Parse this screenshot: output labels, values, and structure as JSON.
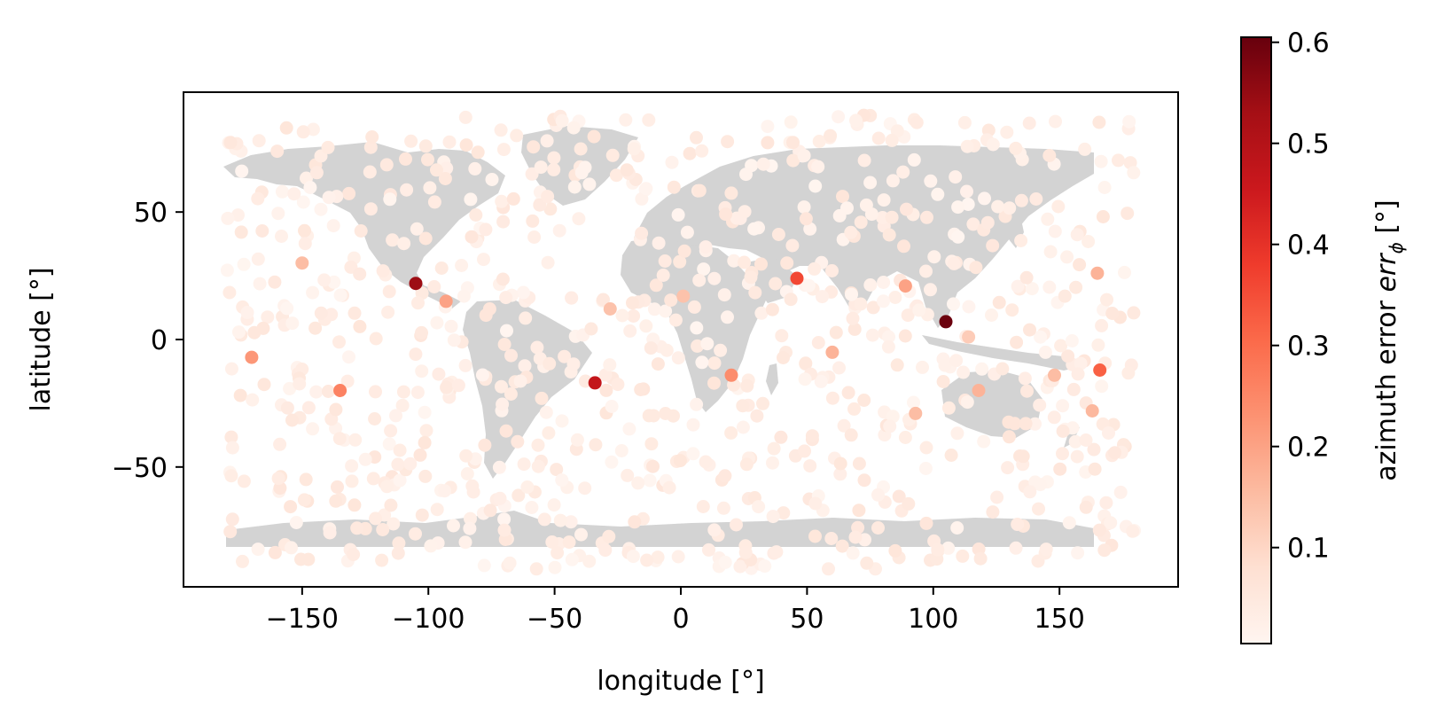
{
  "chart_data": {
    "type": "scatter",
    "title": "",
    "xlabel": "longitude [°]",
    "ylabel": "latitude [°]",
    "xlim": [
      -197,
      197
    ],
    "ylim": [
      -97,
      97
    ],
    "xticks": [
      -150,
      -100,
      -50,
      0,
      50,
      100,
      150
    ],
    "xtick_labels": [
      "−150",
      "−100",
      "−50",
      "0",
      "50",
      "100",
      "150"
    ],
    "yticks": [
      -50,
      0,
      50
    ],
    "ytick_labels": [
      "−50",
      "0",
      "50"
    ],
    "grid": false,
    "background": "world map (land masses in light gray)",
    "colorbar": {
      "label_prefix": "azimuth error ",
      "label_math": "err",
      "label_sub": "ϕ",
      "label_suffix": " [°]",
      "colormap": "Reds",
      "range": [
        0.005,
        0.605
      ],
      "ticks": [
        0.1,
        0.2,
        0.3,
        0.4,
        0.5,
        0.6
      ],
      "tick_labels": [
        "0.1",
        "0.2",
        "0.3",
        "0.4",
        "0.5",
        "0.6"
      ]
    },
    "highlighted_points": [
      {
        "x": 105,
        "y": 7,
        "err": 0.6
      },
      {
        "x": -105,
        "y": 22,
        "err": 0.54
      },
      {
        "x": -34,
        "y": -17,
        "err": 0.47
      },
      {
        "x": 46,
        "y": 24,
        "err": 0.36
      },
      {
        "x": 166,
        "y": -12,
        "err": 0.32
      },
      {
        "x": -135,
        "y": -20,
        "err": 0.26
      },
      {
        "x": 20,
        "y": -14,
        "err": 0.24
      },
      {
        "x": -170,
        "y": -7,
        "err": 0.22
      },
      {
        "x": 89,
        "y": 21,
        "err": 0.2
      },
      {
        "x": -93,
        "y": 15,
        "err": 0.2
      },
      {
        "x": 60,
        "y": -5,
        "err": 0.17
      },
      {
        "x": 165,
        "y": 26,
        "err": 0.17
      },
      {
        "x": 118,
        "y": -20,
        "err": 0.17
      },
      {
        "x": 163,
        "y": -28,
        "err": 0.16
      },
      {
        "x": -150,
        "y": 30,
        "err": 0.15
      },
      {
        "x": 93,
        "y": -29,
        "err": 0.15
      },
      {
        "x": 148,
        "y": -14,
        "err": 0.15
      },
      {
        "x": -28,
        "y": 12,
        "err": 0.14
      },
      {
        "x": 1,
        "y": 17,
        "err": 0.14
      },
      {
        "x": 114,
        "y": 1,
        "err": 0.12
      }
    ],
    "background_points": {
      "count": 900,
      "x_range": [
        -181,
        180
      ],
      "y_range": [
        -90,
        88
      ],
      "err_range": [
        0.005,
        0.06
      ],
      "distribution": "approximately uniform over the globe"
    }
  }
}
